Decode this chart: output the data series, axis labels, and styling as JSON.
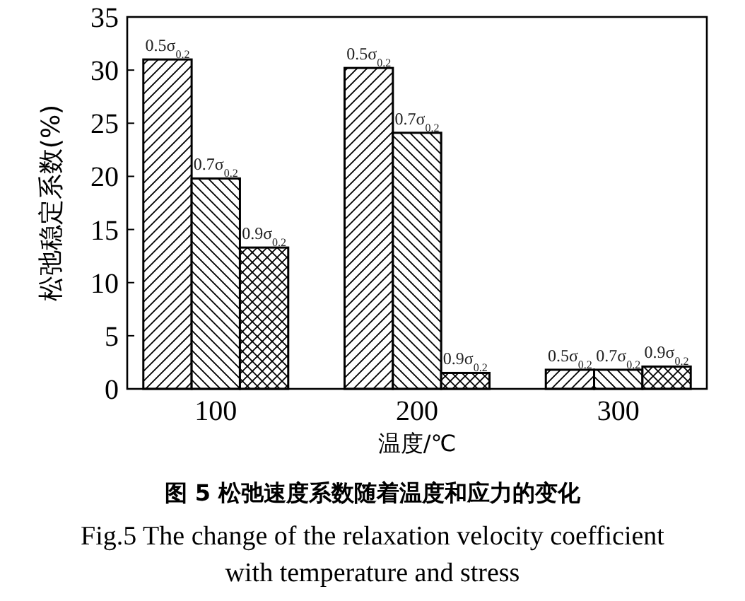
{
  "chart_data": {
    "type": "bar",
    "title": "图 5 松弛速度系数随着温度和应力的变化",
    "subtitle": "Fig.5 The change of the relaxation velocity coefficient with temperature and stress",
    "xlabel": "温度/℃",
    "ylabel": "松弛稳定系数(%)",
    "categories": [
      "100",
      "200",
      "300"
    ],
    "series": [
      {
        "name": "0.5σ$_{0.2}$",
        "color": "#000000",
        "values": [
          31.0,
          30.2,
          1.8
        ]
      },
      {
        "name": "0.7σ$_{0.2}$",
        "color": "#000000",
        "values": [
          19.8,
          24.1,
          1.8
        ]
      },
      {
        "name": "0.9σ$_{0.2}$",
        "color": "#000000",
        "values": [
          13.3,
          1.5,
          2.1
        ]
      }
    ],
    "ylim": [
      0,
      35
    ],
    "yticks": [
      0,
      5,
      10,
      15,
      20,
      25,
      30,
      35
    ],
    "grid": false
  }
}
